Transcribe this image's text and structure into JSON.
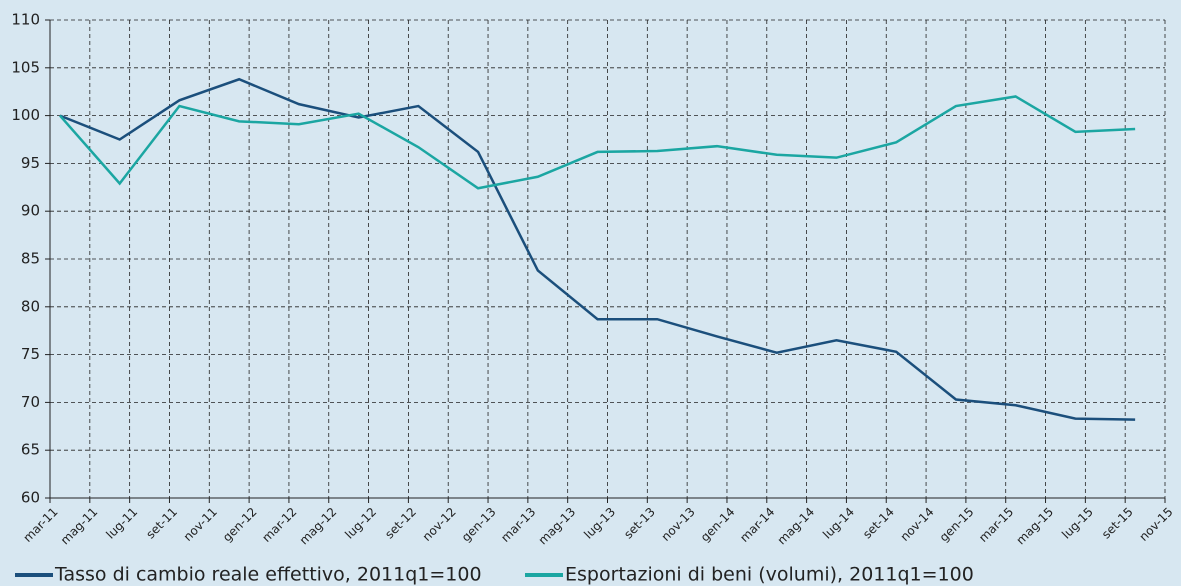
{
  "chart_data": {
    "type": "line",
    "x": [
      0.5,
      3.5,
      6.5,
      9.5,
      12.5,
      15.5,
      18.5,
      21.5,
      24.5,
      27.5,
      30.5,
      33.5,
      36.5,
      39.5,
      42.5,
      45.5,
      48.5,
      51.5,
      54.5
    ],
    "series": [
      {
        "name": "Tasso di cambio reale effettivo, 2011q1=100",
        "color": "#1b4f7c",
        "values": [
          100,
          97.5,
          101.6,
          103.8,
          101.2,
          99.8,
          101,
          96.2,
          83.8,
          78.7,
          78.7,
          76.9,
          75.2,
          76.5,
          75.3,
          70.3,
          69.7,
          68.3,
          68.2
        ]
      },
      {
        "name": "Esportazioni di beni (volumi), 2011q1=100",
        "color": "#1ba6a2",
        "values": [
          100,
          92.9,
          101,
          99.4,
          99.1,
          100.2,
          96.7,
          92.4,
          93.6,
          96.2,
          96.3,
          96.8,
          95.9,
          95.6,
          97.2,
          101,
          102,
          98.3,
          98.6
        ]
      }
    ],
    "xlim": [
      0,
      56
    ],
    "xticks": [
      {
        "value": 0,
        "label": "mar-11"
      },
      {
        "value": 2,
        "label": "mag-11"
      },
      {
        "value": 4,
        "label": "lug-11"
      },
      {
        "value": 6,
        "label": "set-11"
      },
      {
        "value": 8,
        "label": "nov-11"
      },
      {
        "value": 10,
        "label": "gen-12"
      },
      {
        "value": 12,
        "label": "mar-12"
      },
      {
        "value": 14,
        "label": "mag-12"
      },
      {
        "value": 16,
        "label": "lug-12"
      },
      {
        "value": 18,
        "label": "set-12"
      },
      {
        "value": 20,
        "label": "nov-12"
      },
      {
        "value": 22,
        "label": "gen-13"
      },
      {
        "value": 24,
        "label": "mar-13"
      },
      {
        "value": 26,
        "label": "mag-13"
      },
      {
        "value": 28,
        "label": "lug-13"
      },
      {
        "value": 30,
        "label": "set-13"
      },
      {
        "value": 32,
        "label": "nov-13"
      },
      {
        "value": 34,
        "label": "gen-14"
      },
      {
        "value": 36,
        "label": "mar-14"
      },
      {
        "value": 38,
        "label": "mag-14"
      },
      {
        "value": 40,
        "label": "lug-14"
      },
      {
        "value": 42,
        "label": "set-14"
      },
      {
        "value": 44,
        "label": "nov-14"
      },
      {
        "value": 46,
        "label": "gen-15"
      },
      {
        "value": 48,
        "label": "mar-15"
      },
      {
        "value": 50,
        "label": "mag-15"
      },
      {
        "value": 52,
        "label": "lug-15"
      },
      {
        "value": 54,
        "label": "set-15"
      },
      {
        "value": 56,
        "label": "nov-15"
      }
    ],
    "ylim": [
      60,
      110
    ],
    "yticks": [
      60,
      65,
      70,
      75,
      80,
      85,
      90,
      95,
      100,
      105,
      110
    ],
    "grid": true
  }
}
